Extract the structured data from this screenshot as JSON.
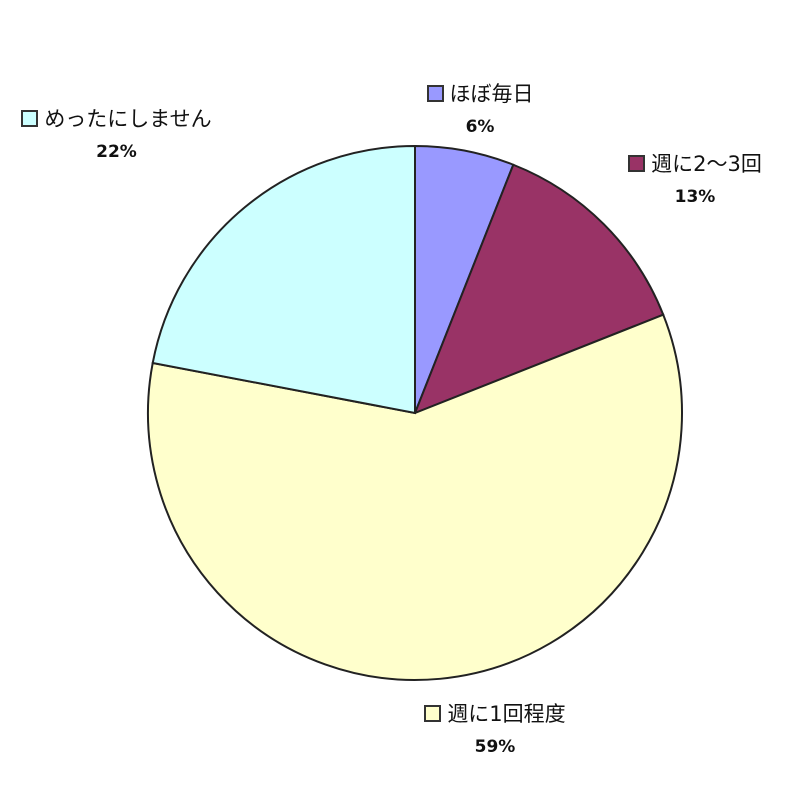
{
  "chart_data": {
    "type": "pie",
    "title": "",
    "start_angle_deg": 0,
    "direction": "clockwise",
    "slices": [
      {
        "label": "ほぼ毎日",
        "value": 6,
        "value_label": "6%",
        "color": "#9999FF"
      },
      {
        "label": "週に2～3回",
        "value": 13,
        "value_label": "13%",
        "color": "#993366"
      },
      {
        "label": "週に1回程度",
        "value": 59,
        "value_label": "59%",
        "color": "#FFFFCC"
      },
      {
        "label": "めったにしません",
        "value": 22,
        "value_label": "22%",
        "color": "#CCFFFF"
      }
    ],
    "legend": "none",
    "data_labels": "outside with category and percent"
  }
}
